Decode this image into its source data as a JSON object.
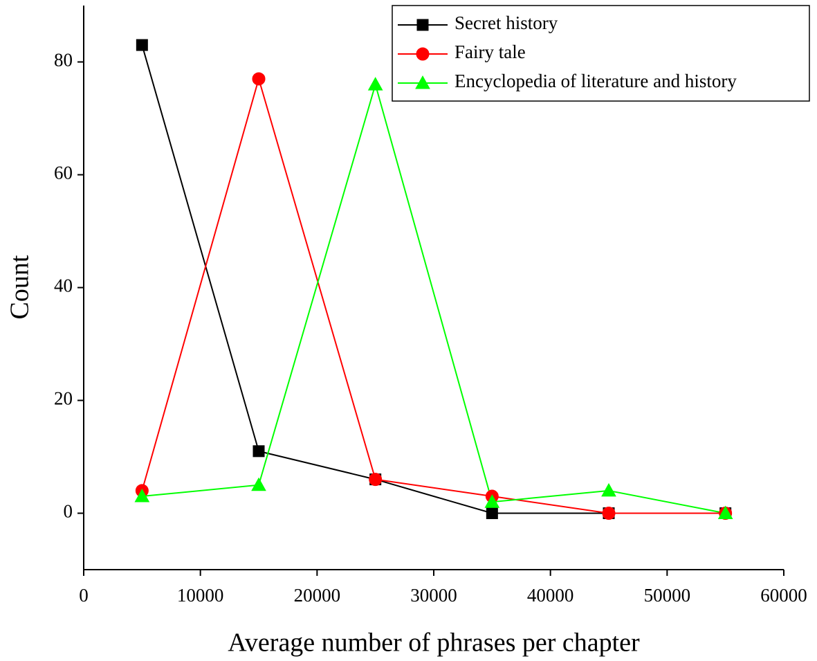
{
  "chart_data": {
    "type": "line",
    "x_label": "Average number of phrases per chapter",
    "y_label": "Count",
    "x": [
      5000,
      15000,
      25000,
      35000,
      45000,
      55000
    ],
    "series": [
      {
        "name": "Secret history",
        "color": "#000000",
        "marker": "square",
        "values": [
          83,
          11,
          6,
          0,
          0,
          0
        ]
      },
      {
        "name": "Fairy tale",
        "color": "#ff0000",
        "marker": "circle",
        "values": [
          4,
          77,
          6,
          3,
          0,
          0
        ]
      },
      {
        "name": "Encyclopedia of literature and history",
        "color": "#00ff00",
        "marker": "triangle",
        "values": [
          3,
          5,
          76,
          2,
          4,
          0
        ]
      }
    ],
    "xlim": [
      0,
      60000
    ],
    "xticks": [
      0,
      10000,
      20000,
      30000,
      40000,
      50000,
      60000
    ],
    "ylim": [
      -10,
      90
    ],
    "yticks": [
      0,
      20,
      40,
      60,
      80
    ],
    "legend": "top-right"
  }
}
